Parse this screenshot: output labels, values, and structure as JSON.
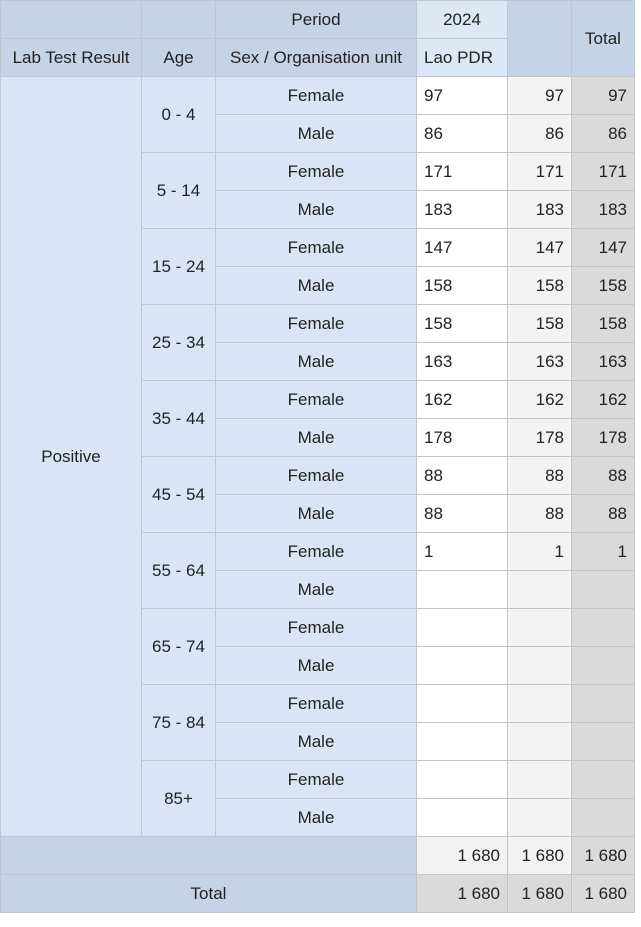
{
  "header": {
    "period_label": "Period",
    "period_value": "2024",
    "total_label": "Total",
    "col_lab": "Lab Test Result",
    "col_age": "Age",
    "col_sex_org": "Sex / Organisation unit",
    "org_unit": "Lao PDR"
  },
  "result_label": "Positive",
  "groups": [
    {
      "age": "0 - 4",
      "rows": [
        {
          "sex": "Female",
          "value": "97",
          "subtotal": "97",
          "total": "97"
        },
        {
          "sex": "Male",
          "value": "86",
          "subtotal": "86",
          "total": "86"
        }
      ]
    },
    {
      "age": "5 - 14",
      "rows": [
        {
          "sex": "Female",
          "value": "171",
          "subtotal": "171",
          "total": "171"
        },
        {
          "sex": "Male",
          "value": "183",
          "subtotal": "183",
          "total": "183"
        }
      ]
    },
    {
      "age": "15 - 24",
      "rows": [
        {
          "sex": "Female",
          "value": "147",
          "subtotal": "147",
          "total": "147"
        },
        {
          "sex": "Male",
          "value": "158",
          "subtotal": "158",
          "total": "158"
        }
      ]
    },
    {
      "age": "25 - 34",
      "rows": [
        {
          "sex": "Female",
          "value": "158",
          "subtotal": "158",
          "total": "158"
        },
        {
          "sex": "Male",
          "value": "163",
          "subtotal": "163",
          "total": "163"
        }
      ]
    },
    {
      "age": "35 - 44",
      "rows": [
        {
          "sex": "Female",
          "value": "162",
          "subtotal": "162",
          "total": "162"
        },
        {
          "sex": "Male",
          "value": "178",
          "subtotal": "178",
          "total": "178"
        }
      ]
    },
    {
      "age": "45 - 54",
      "rows": [
        {
          "sex": "Female",
          "value": "88",
          "subtotal": "88",
          "total": "88"
        },
        {
          "sex": "Male",
          "value": "88",
          "subtotal": "88",
          "total": "88"
        }
      ]
    },
    {
      "age": "55 - 64",
      "rows": [
        {
          "sex": "Female",
          "value": "1",
          "subtotal": "1",
          "total": "1"
        },
        {
          "sex": "Male",
          "value": "",
          "subtotal": "",
          "total": ""
        }
      ]
    },
    {
      "age": "65 - 74",
      "rows": [
        {
          "sex": "Female",
          "value": "",
          "subtotal": "",
          "total": ""
        },
        {
          "sex": "Male",
          "value": "",
          "subtotal": "",
          "total": ""
        }
      ]
    },
    {
      "age": "75 - 84",
      "rows": [
        {
          "sex": "Female",
          "value": "",
          "subtotal": "",
          "total": ""
        },
        {
          "sex": "Male",
          "value": "",
          "subtotal": "",
          "total": ""
        }
      ]
    },
    {
      "age": "85+",
      "rows": [
        {
          "sex": "Female",
          "value": "",
          "subtotal": "",
          "total": ""
        },
        {
          "sex": "Male",
          "value": "",
          "subtotal": "",
          "total": ""
        }
      ]
    }
  ],
  "subtotal_row": {
    "value": "1 680",
    "subtotal": "1 680",
    "total": "1 680"
  },
  "total_row": {
    "label": "Total",
    "value": "1 680",
    "subtotal": "1 680",
    "total": "1 680"
  },
  "colors": {
    "header_bg": "#c5d3e6",
    "dimension_bg": "#d9e5f6",
    "subtotal_bg": "#f3f3f3",
    "total_bg": "#dadada",
    "border": "#c0c6cf"
  }
}
